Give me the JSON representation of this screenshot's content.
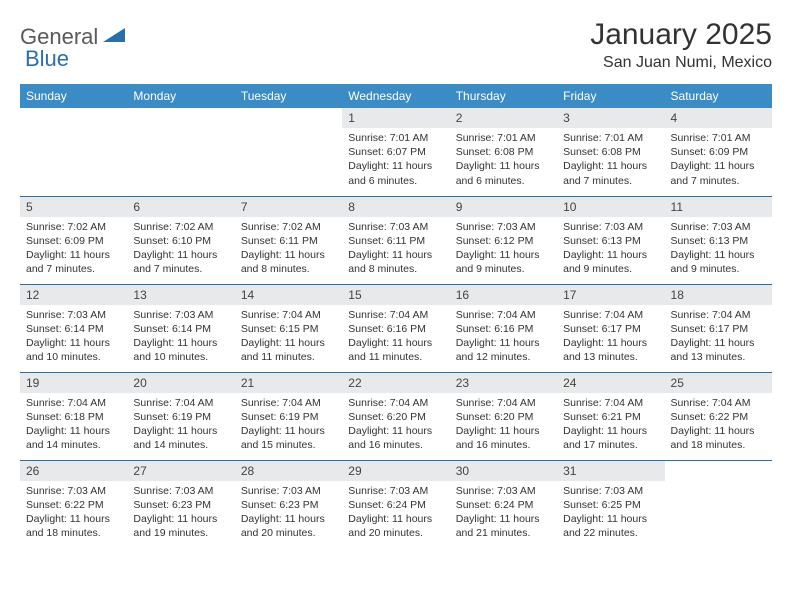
{
  "colors": {
    "header_bg": "#3b8bc4",
    "header_text": "#ffffff",
    "daynum_bg": "#e8e9ea",
    "border": "#2b6fa8",
    "body_text": "#333333",
    "logo_gray": "#5a5a5a",
    "logo_blue": "#2b6fa8"
  },
  "logo": {
    "part1": "General",
    "part2": "Blue"
  },
  "title": "January 2025",
  "location": "San Juan Numi, Mexico",
  "weekdays": [
    "Sunday",
    "Monday",
    "Tuesday",
    "Wednesday",
    "Thursday",
    "Friday",
    "Saturday"
  ],
  "weeks": [
    [
      {
        "n": "",
        "sr": "",
        "ss": "",
        "dl": ""
      },
      {
        "n": "",
        "sr": "",
        "ss": "",
        "dl": ""
      },
      {
        "n": "",
        "sr": "",
        "ss": "",
        "dl": ""
      },
      {
        "n": "1",
        "sr": "Sunrise: 7:01 AM",
        "ss": "Sunset: 6:07 PM",
        "dl": "Daylight: 11 hours and 6 minutes."
      },
      {
        "n": "2",
        "sr": "Sunrise: 7:01 AM",
        "ss": "Sunset: 6:08 PM",
        "dl": "Daylight: 11 hours and 6 minutes."
      },
      {
        "n": "3",
        "sr": "Sunrise: 7:01 AM",
        "ss": "Sunset: 6:08 PM",
        "dl": "Daylight: 11 hours and 7 minutes."
      },
      {
        "n": "4",
        "sr": "Sunrise: 7:01 AM",
        "ss": "Sunset: 6:09 PM",
        "dl": "Daylight: 11 hours and 7 minutes."
      }
    ],
    [
      {
        "n": "5",
        "sr": "Sunrise: 7:02 AM",
        "ss": "Sunset: 6:09 PM",
        "dl": "Daylight: 11 hours and 7 minutes."
      },
      {
        "n": "6",
        "sr": "Sunrise: 7:02 AM",
        "ss": "Sunset: 6:10 PM",
        "dl": "Daylight: 11 hours and 7 minutes."
      },
      {
        "n": "7",
        "sr": "Sunrise: 7:02 AM",
        "ss": "Sunset: 6:11 PM",
        "dl": "Daylight: 11 hours and 8 minutes."
      },
      {
        "n": "8",
        "sr": "Sunrise: 7:03 AM",
        "ss": "Sunset: 6:11 PM",
        "dl": "Daylight: 11 hours and 8 minutes."
      },
      {
        "n": "9",
        "sr": "Sunrise: 7:03 AM",
        "ss": "Sunset: 6:12 PM",
        "dl": "Daylight: 11 hours and 9 minutes."
      },
      {
        "n": "10",
        "sr": "Sunrise: 7:03 AM",
        "ss": "Sunset: 6:13 PM",
        "dl": "Daylight: 11 hours and 9 minutes."
      },
      {
        "n": "11",
        "sr": "Sunrise: 7:03 AM",
        "ss": "Sunset: 6:13 PM",
        "dl": "Daylight: 11 hours and 9 minutes."
      }
    ],
    [
      {
        "n": "12",
        "sr": "Sunrise: 7:03 AM",
        "ss": "Sunset: 6:14 PM",
        "dl": "Daylight: 11 hours and 10 minutes."
      },
      {
        "n": "13",
        "sr": "Sunrise: 7:03 AM",
        "ss": "Sunset: 6:14 PM",
        "dl": "Daylight: 11 hours and 10 minutes."
      },
      {
        "n": "14",
        "sr": "Sunrise: 7:04 AM",
        "ss": "Sunset: 6:15 PM",
        "dl": "Daylight: 11 hours and 11 minutes."
      },
      {
        "n": "15",
        "sr": "Sunrise: 7:04 AM",
        "ss": "Sunset: 6:16 PM",
        "dl": "Daylight: 11 hours and 11 minutes."
      },
      {
        "n": "16",
        "sr": "Sunrise: 7:04 AM",
        "ss": "Sunset: 6:16 PM",
        "dl": "Daylight: 11 hours and 12 minutes."
      },
      {
        "n": "17",
        "sr": "Sunrise: 7:04 AM",
        "ss": "Sunset: 6:17 PM",
        "dl": "Daylight: 11 hours and 13 minutes."
      },
      {
        "n": "18",
        "sr": "Sunrise: 7:04 AM",
        "ss": "Sunset: 6:17 PM",
        "dl": "Daylight: 11 hours and 13 minutes."
      }
    ],
    [
      {
        "n": "19",
        "sr": "Sunrise: 7:04 AM",
        "ss": "Sunset: 6:18 PM",
        "dl": "Daylight: 11 hours and 14 minutes."
      },
      {
        "n": "20",
        "sr": "Sunrise: 7:04 AM",
        "ss": "Sunset: 6:19 PM",
        "dl": "Daylight: 11 hours and 14 minutes."
      },
      {
        "n": "21",
        "sr": "Sunrise: 7:04 AM",
        "ss": "Sunset: 6:19 PM",
        "dl": "Daylight: 11 hours and 15 minutes."
      },
      {
        "n": "22",
        "sr": "Sunrise: 7:04 AM",
        "ss": "Sunset: 6:20 PM",
        "dl": "Daylight: 11 hours and 16 minutes."
      },
      {
        "n": "23",
        "sr": "Sunrise: 7:04 AM",
        "ss": "Sunset: 6:20 PM",
        "dl": "Daylight: 11 hours and 16 minutes."
      },
      {
        "n": "24",
        "sr": "Sunrise: 7:04 AM",
        "ss": "Sunset: 6:21 PM",
        "dl": "Daylight: 11 hours and 17 minutes."
      },
      {
        "n": "25",
        "sr": "Sunrise: 7:04 AM",
        "ss": "Sunset: 6:22 PM",
        "dl": "Daylight: 11 hours and 18 minutes."
      }
    ],
    [
      {
        "n": "26",
        "sr": "Sunrise: 7:03 AM",
        "ss": "Sunset: 6:22 PM",
        "dl": "Daylight: 11 hours and 18 minutes."
      },
      {
        "n": "27",
        "sr": "Sunrise: 7:03 AM",
        "ss": "Sunset: 6:23 PM",
        "dl": "Daylight: 11 hours and 19 minutes."
      },
      {
        "n": "28",
        "sr": "Sunrise: 7:03 AM",
        "ss": "Sunset: 6:23 PM",
        "dl": "Daylight: 11 hours and 20 minutes."
      },
      {
        "n": "29",
        "sr": "Sunrise: 7:03 AM",
        "ss": "Sunset: 6:24 PM",
        "dl": "Daylight: 11 hours and 20 minutes."
      },
      {
        "n": "30",
        "sr": "Sunrise: 7:03 AM",
        "ss": "Sunset: 6:24 PM",
        "dl": "Daylight: 11 hours and 21 minutes."
      },
      {
        "n": "31",
        "sr": "Sunrise: 7:03 AM",
        "ss": "Sunset: 6:25 PM",
        "dl": "Daylight: 11 hours and 22 minutes."
      },
      {
        "n": "",
        "sr": "",
        "ss": "",
        "dl": ""
      }
    ]
  ]
}
